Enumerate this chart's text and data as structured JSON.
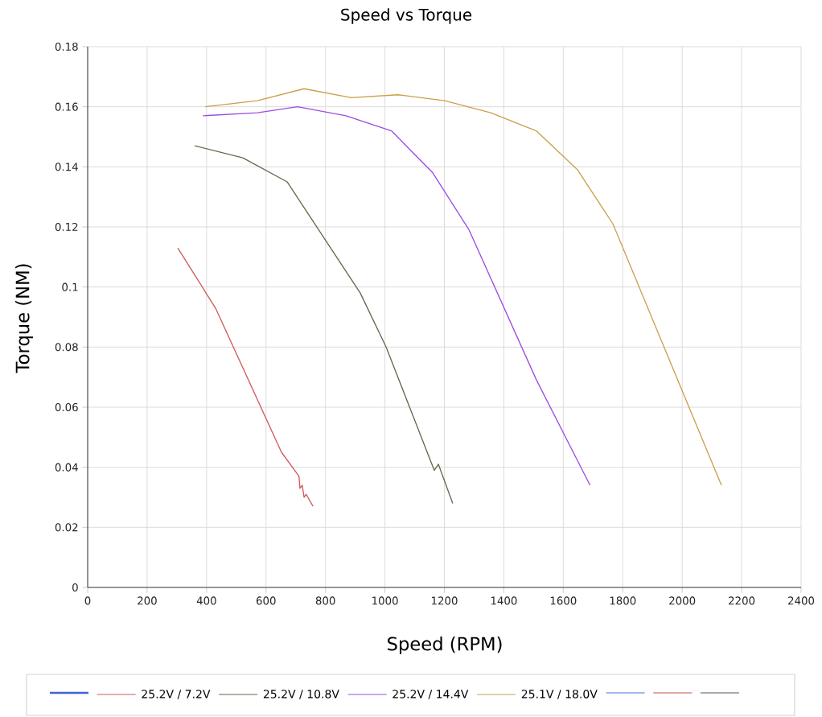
{
  "chart_data": {
    "type": "line",
    "title": "Speed vs Torque",
    "xlabel": "Speed (RPM)",
    "ylabel": "Torque (NM)",
    "xlim": [
      0,
      2400
    ],
    "xticks": [
      0,
      200,
      400,
      600,
      800,
      1000,
      1200,
      1400,
      1600,
      1800,
      2000,
      2200,
      2400
    ],
    "ylim": [
      0,
      0.18
    ],
    "yticks": [
      0,
      0.02,
      0.04,
      0.06,
      0.08,
      0.1,
      0.12,
      0.14,
      0.16,
      0.18
    ],
    "grid": true,
    "legend": "bottom",
    "marker": "none",
    "line_style": "solid",
    "series": [
      {
        "color": "#3f63d6"
      },
      {
        "name": "25.2V / 7.2V",
        "color": "#d0595c",
        "x": [
          303,
          430,
          652,
          711,
          714,
          722,
          728,
          735,
          758
        ],
        "values": [
          0.113,
          0.093,
          0.045,
          0.037,
          0.033,
          0.034,
          0.03,
          0.031,
          0.027
        ]
      },
      {
        "name": "25.2V / 10.8V",
        "color": "#5e6b4c",
        "x": [
          360,
          522,
          671,
          917,
          1004,
          1166,
          1180,
          1228
        ],
        "values": [
          0.147,
          0.143,
          0.135,
          0.098,
          0.08,
          0.039,
          0.041,
          0.028
        ]
      },
      {
        "name": "25.2V / 14.4V",
        "color": "#9b4de0",
        "x": [
          387,
          571,
          706,
          869,
          1022,
          1161,
          1283,
          1510,
          1690
        ],
        "values": [
          0.157,
          0.158,
          0.16,
          0.157,
          0.152,
          0.138,
          0.119,
          0.069,
          0.034
        ]
      },
      {
        "name": "25.1V / 18.0V",
        "color": "#c9a04a",
        "x": [
          395,
          571,
          728,
          887,
          1044,
          1201,
          1356,
          1509,
          1648,
          1767,
          2132
        ],
        "values": [
          0.16,
          0.162,
          0.166,
          0.163,
          0.164,
          0.162,
          0.158,
          0.152,
          0.139,
          0.121,
          0.034
        ]
      },
      {
        "color": "#4a6fd8"
      },
      {
        "color": "#c0504d"
      },
      {
        "color": "#4f5b45"
      }
    ]
  }
}
